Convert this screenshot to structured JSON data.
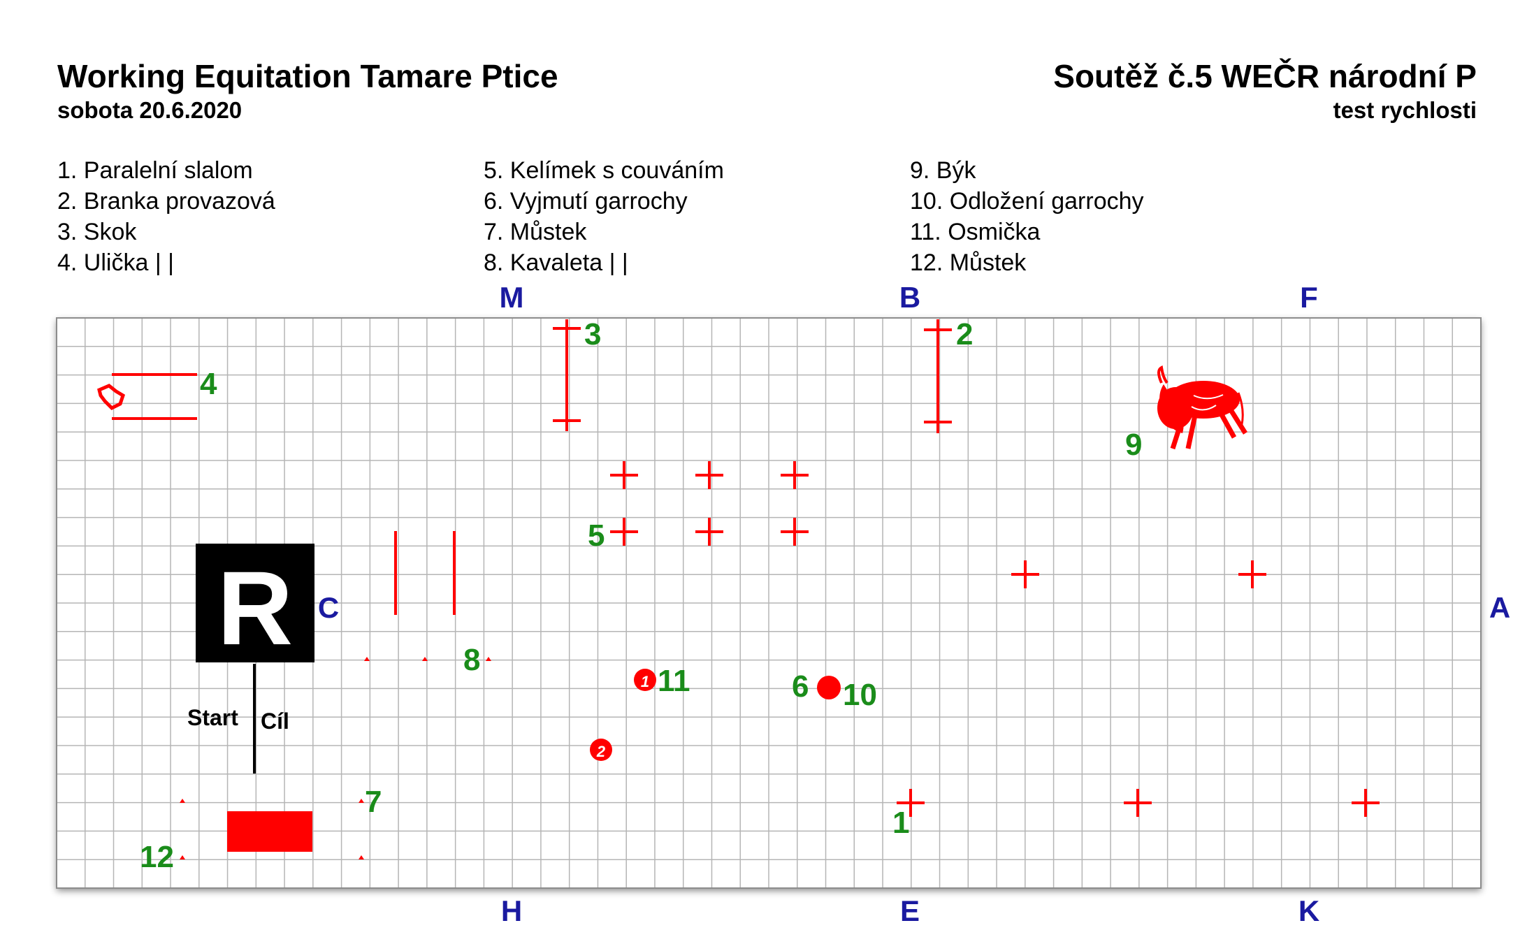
{
  "header": {
    "title": "Working Equitation Tamare Ptice",
    "date": "sobota 20.6.2020",
    "competition": "Soutěž č.5 WEČR národní P",
    "test_type": "test rychlosti"
  },
  "legend": {
    "col1": [
      "1. Paralelní slalom",
      "2. Branka provazová",
      "3. Skok",
      "4. Ulička | |"
    ],
    "col2": [
      "5. Kelímek s couváním",
      "6. Vyjmutí garrochy",
      "7. Můstek",
      "8. Kavaleta | |"
    ],
    "col3": [
      "9. Býk",
      "10. Odložení garrochy",
      "11. Osmička",
      "12. Můstek"
    ]
  },
  "arena_letters": {
    "top": [
      "M",
      "B",
      "F"
    ],
    "bottom": [
      "H",
      "E",
      "K"
    ],
    "left": "C",
    "right": "A"
  },
  "judge_box": {
    "letter": "R"
  },
  "start_finish": {
    "start": "Start",
    "finish": "Cíl"
  },
  "obstacle_numbers": [
    "1",
    "2",
    "3",
    "4",
    "5",
    "6",
    "7",
    "8",
    "9",
    "10",
    "11",
    "12"
  ],
  "eight_markers": [
    "1",
    "2"
  ],
  "colors": {
    "obstacle": "#ff0000",
    "number": "#1a8c1a",
    "letter": "#1a1aa0",
    "grid": "#b5b5b5",
    "judge_box": "#000000"
  },
  "icons": {
    "bull": "bull-icon"
  }
}
